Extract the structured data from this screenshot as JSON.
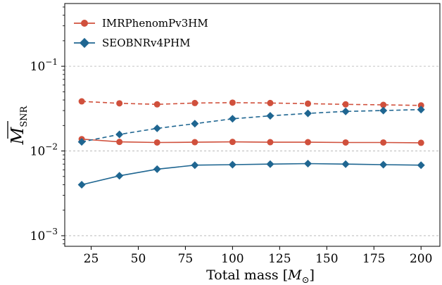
{
  "chart_data": {
    "type": "line",
    "xlabel": "Total mass [",
    "xlabel_symbol": "M",
    "xlabel_subscript": "⊙",
    "xlabel_suffix": "]",
    "ylabel_symbol": "M",
    "ylabel_subscript": "SNR",
    "xlim": [
      11,
      210
    ],
    "ylim": [
      0.00075,
      0.55
    ],
    "yscale": "log",
    "x_ticks": [
      25,
      50,
      75,
      100,
      125,
      150,
      175,
      200
    ],
    "x_tick_labels": [
      "25",
      "50",
      "75",
      "100",
      "125",
      "150",
      "175",
      "200"
    ],
    "y_ticks": [
      0.1,
      0.01,
      0.001
    ],
    "y_tick_labels": [
      {
        "base": "10",
        "exp": "−1"
      },
      {
        "base": "10",
        "exp": "−2"
      },
      {
        "base": "10",
        "exp": "−3"
      }
    ],
    "grid": "y-major-dashed",
    "legend_placement": "top-left",
    "x": [
      20,
      40,
      60,
      80,
      100,
      120,
      140,
      160,
      180,
      200
    ],
    "series": [
      {
        "name": "IMRPhenomPv3HM",
        "color": "#d0503c",
        "marker": "circle",
        "solid": [
          0.0138,
          0.0128,
          0.0126,
          0.0127,
          0.0128,
          0.0127,
          0.0127,
          0.0126,
          0.0126,
          0.0125
        ],
        "dashed": [
          0.0385,
          0.0365,
          0.0355,
          0.0368,
          0.0372,
          0.0368,
          0.0362,
          0.0355,
          0.035,
          0.0345
        ]
      },
      {
        "name": "SEOBNRv4PHM",
        "color": "#1f6691",
        "marker": "diamond",
        "solid": [
          0.004,
          0.0051,
          0.0061,
          0.0068,
          0.0069,
          0.007,
          0.0071,
          0.007,
          0.0069,
          0.0068
        ],
        "dashed": [
          0.0128,
          0.0157,
          0.0185,
          0.021,
          0.024,
          0.026,
          0.0278,
          0.0293,
          0.03,
          0.0308
        ]
      }
    ]
  }
}
